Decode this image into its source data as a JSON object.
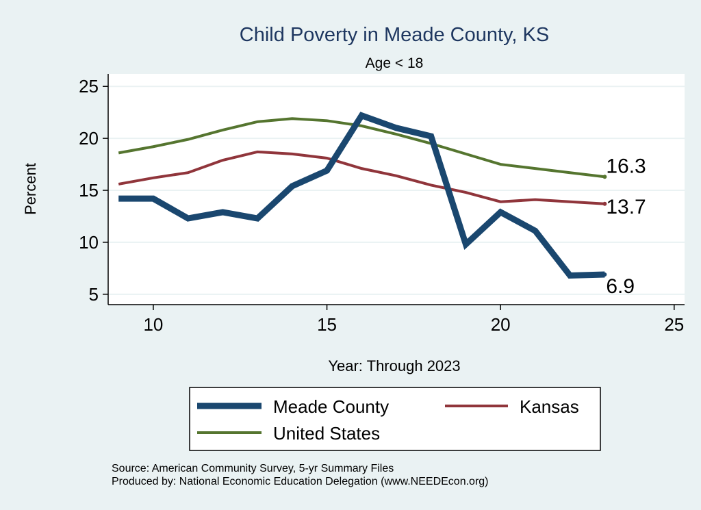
{
  "chart_data": {
    "type": "line",
    "title": "Child Poverty in Meade County, KS",
    "subtitle": "Age < 18",
    "xlabel": "Year: Through 2023",
    "ylabel": "Percent",
    "xlim": [
      8.7,
      25.3
    ],
    "ylim": [
      4.0,
      26.2
    ],
    "xticks": [
      10,
      15,
      20,
      25
    ],
    "yticks": [
      5,
      10,
      15,
      20,
      25
    ],
    "grid": true,
    "legend_placement": "bottom",
    "x": [
      9,
      10,
      11,
      12,
      13,
      14,
      15,
      16,
      17,
      18,
      19,
      20,
      21,
      22,
      23
    ],
    "series": [
      {
        "name": "Meade County",
        "color": "#1a476f",
        "width": 9,
        "end_label": "6.9",
        "values": [
          14.2,
          14.2,
          12.3,
          12.9,
          12.3,
          15.4,
          16.9,
          22.2,
          21.0,
          20.2,
          9.8,
          12.9,
          11.1,
          6.8,
          6.9
        ]
      },
      {
        "name": "Kansas",
        "color": "#90353b",
        "width": 4,
        "end_label": "13.7",
        "values": [
          15.6,
          16.2,
          16.7,
          17.9,
          18.7,
          18.5,
          18.1,
          17.1,
          16.4,
          15.5,
          14.8,
          13.9,
          14.1,
          13.9,
          13.7
        ]
      },
      {
        "name": "United States",
        "color": "#55752f",
        "width": 4,
        "end_label": "16.3",
        "values": [
          18.6,
          19.2,
          19.9,
          20.8,
          21.6,
          21.9,
          21.7,
          21.2,
          20.4,
          19.5,
          18.5,
          17.5,
          17.1,
          16.7,
          16.3
        ]
      }
    ],
    "notes": [
      "Source: American Community Survey, 5-yr Summary Files",
      "Produced by: National Economic Education Delegation (www.NEEDEcon.org)"
    ]
  }
}
